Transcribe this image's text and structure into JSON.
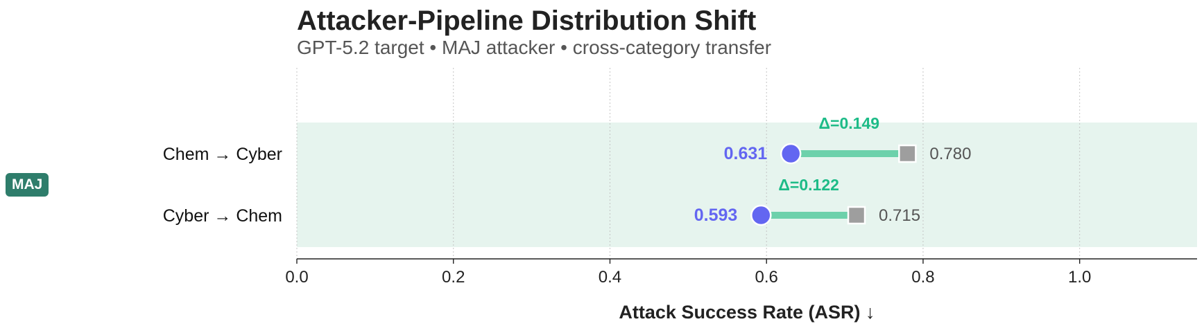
{
  "title": "Attacker-Pipeline Distribution Shift",
  "subtitle": "GPT-5.2 target • MAJ attacker • cross-category transfer",
  "group_badge": "MAJ",
  "colors": {
    "accent": "#6366f1",
    "delta": "#1dbb87",
    "connector": "#6dd1ab",
    "band": "#e6f4ee",
    "square": "#9e9e9e",
    "badge": "#2e7d6b"
  },
  "chart_data": {
    "type": "dumbbell",
    "title": "Attacker-Pipeline Distribution Shift",
    "subtitle": "GPT-5.2 target • MAJ attacker • cross-category transfer",
    "xlabel": "Attack Success Rate (ASR)  ↓",
    "xlim": [
      0,
      1.15
    ],
    "xticks": [
      0.0,
      0.2,
      0.4,
      0.6,
      0.8,
      1.0
    ],
    "xtick_labels": [
      "0.0",
      "0.2",
      "0.4",
      "0.6",
      "0.8",
      "1.0"
    ],
    "grid": "vertical-dotted",
    "rows": [
      {
        "label": "Chem  →  Cyber",
        "circle": 0.631,
        "circle_label": "0.631",
        "square": 0.78,
        "square_label": "0.780",
        "delta_label": "Δ=0.149"
      },
      {
        "label": "Cyber  →  Chem",
        "circle": 0.593,
        "circle_label": "0.593",
        "square": 0.715,
        "square_label": "0.715",
        "delta_label": "Δ=0.122"
      }
    ]
  }
}
